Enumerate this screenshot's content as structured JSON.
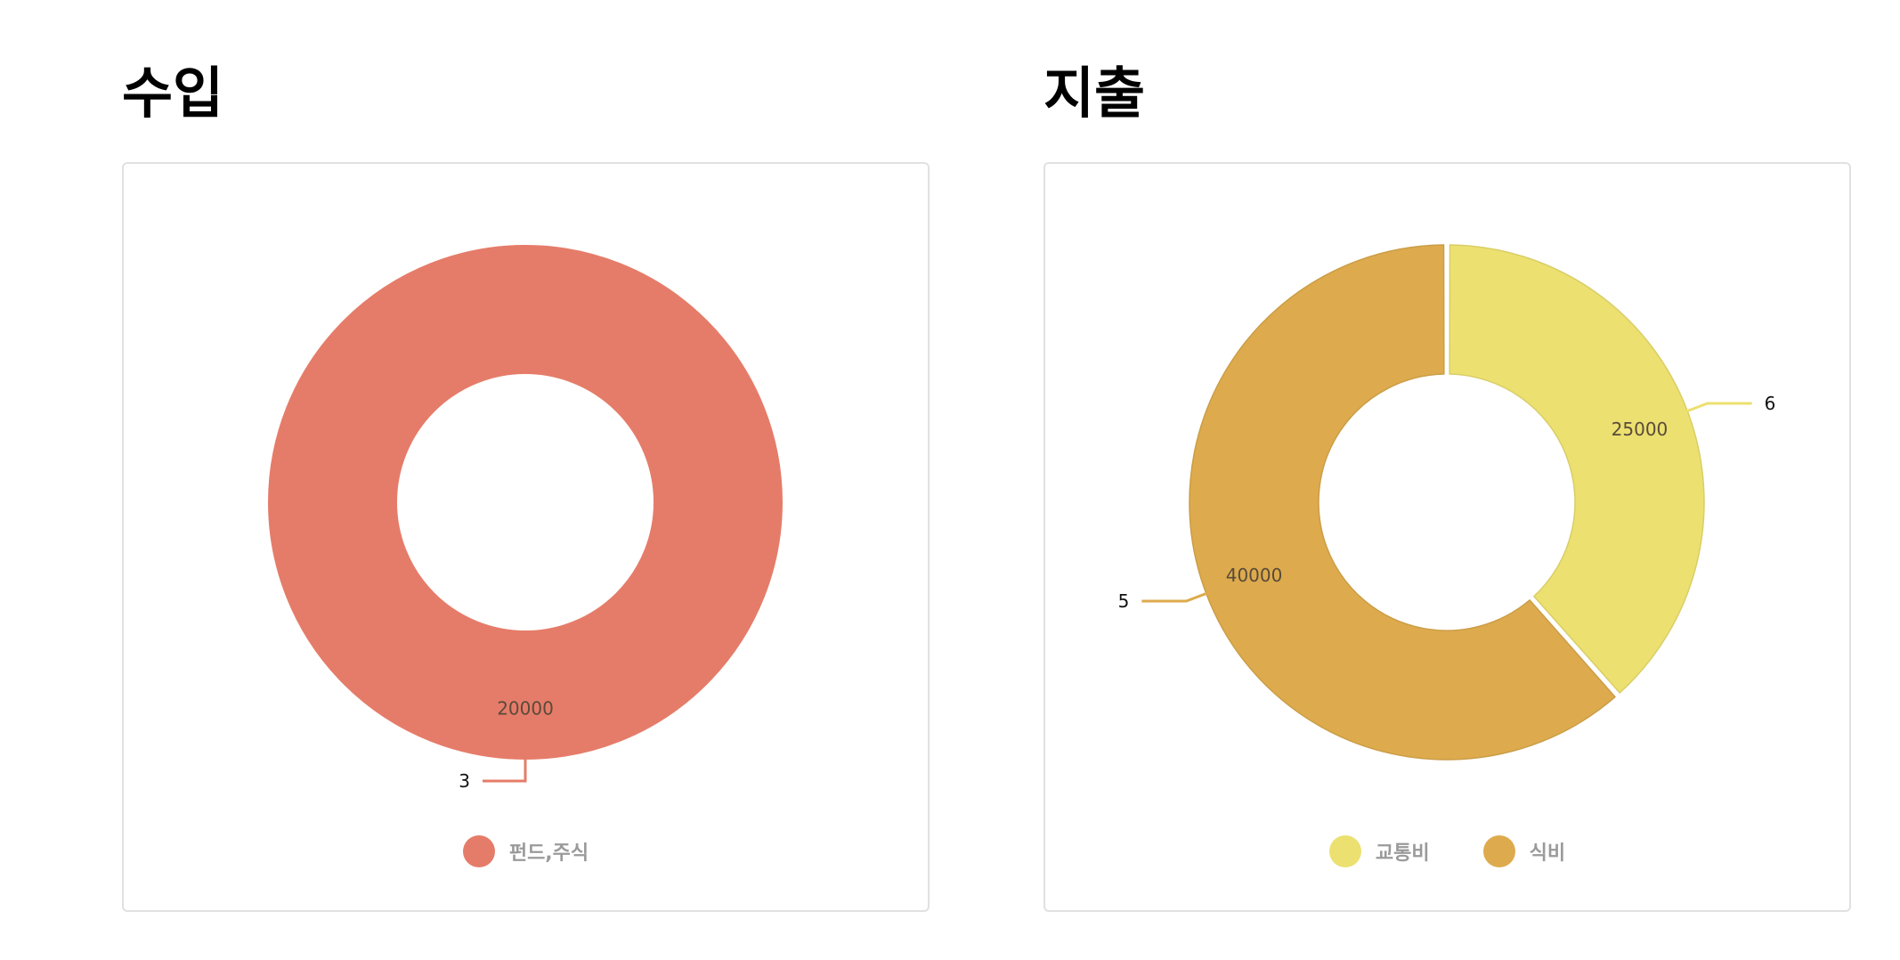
{
  "income": {
    "title": "수입",
    "chart_data": {
      "type": "pie",
      "donut": true,
      "title": "수입",
      "legend_position": "bottom",
      "slices": [
        {
          "name": "펀드,주식",
          "value": 20000,
          "callout": "3",
          "color": "#e57c69"
        }
      ]
    }
  },
  "expense": {
    "title": "지출",
    "chart_data": {
      "type": "pie",
      "donut": true,
      "title": "지출",
      "legend_position": "bottom",
      "slices": [
        {
          "name": "교통비",
          "value": 25000,
          "callout": "6",
          "color": "#ece070"
        },
        {
          "name": "식비",
          "value": 40000,
          "callout": "5",
          "color": "#ddab4d"
        }
      ]
    }
  }
}
